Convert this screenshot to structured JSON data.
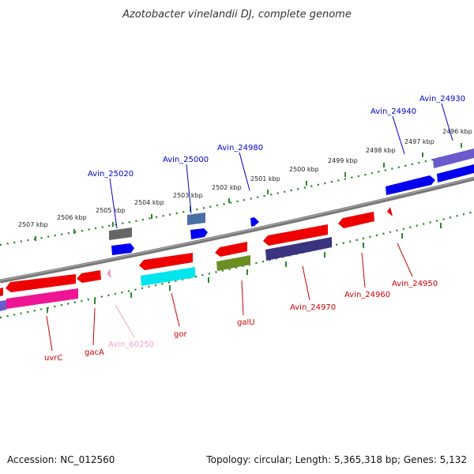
{
  "title": "Azotobacter vinelandii DJ, complete genome",
  "footer": {
    "accession": "Accession: NC_012560",
    "summary": "Topology: circular; Length: 5,365,318 bp; Genes: 5,132"
  },
  "ticks": [
    "2507 kbp",
    "2506 kbp",
    "2505 kbp",
    "2504 kbp",
    "2503 kbp",
    "2502 kbp",
    "2501 kbp",
    "2500 kbp",
    "2499 kbp",
    "2498 kbp",
    "2497 kbp",
    "2496 kbp"
  ],
  "genes_forward": [
    {
      "name": "Avin_25020",
      "color": "#0000cc"
    },
    {
      "name": "Avin_25000",
      "color": "#0000cc"
    },
    {
      "name": "Avin_24980",
      "color": "#0000cc"
    },
    {
      "name": "Avin_24940",
      "color": "#0000cc"
    },
    {
      "name": "Avin_24930",
      "color": "#0000cc"
    }
  ],
  "genes_reverse": [
    {
      "name": "uvrC",
      "color": "#cc0000"
    },
    {
      "name": "gacA",
      "color": "#cc0000"
    },
    {
      "name": "Avin_60250",
      "color": "#f0a0c8"
    },
    {
      "name": "gor",
      "color": "#cc0000"
    },
    {
      "name": "galU",
      "color": "#cc0000"
    },
    {
      "name": "Avin_24970",
      "color": "#cc0000"
    },
    {
      "name": "Avin_24960",
      "color": "#cc0000"
    },
    {
      "name": "Avin_24950",
      "color": "#cc0000"
    }
  ]
}
